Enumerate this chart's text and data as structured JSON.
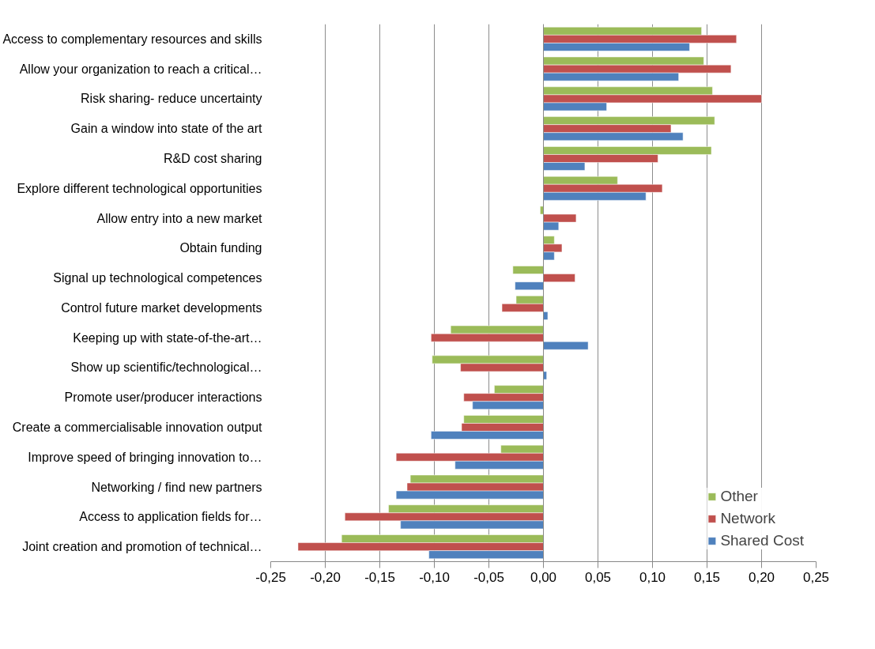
{
  "chart_data": {
    "type": "bar",
    "orientation": "horizontal",
    "categories": [
      "Access to complementary resources and skills",
      "Allow your organization to reach a critical…",
      "Risk sharing- reduce uncertainty",
      "Gain a window into state of the art",
      "R&D cost sharing",
      "Explore different technological opportunities",
      "Allow entry into a new market",
      "Obtain funding",
      "Signal up technological competences",
      "Control future market developments",
      "Keeping up with state-of-the-art…",
      "Show up scientific/technological…",
      "Promote user/producer interactions",
      "Create a commercialisable innovation output",
      "Improve speed of bringing innovation to…",
      "Networking / find new partners",
      "Access to application fields for…",
      "Joint creation and promotion of technical…"
    ],
    "series": [
      {
        "name": "Other",
        "color": "#9bbb59",
        "values": [
          0.145,
          0.147,
          0.155,
          0.157,
          0.154,
          0.068,
          -0.003,
          0.01,
          -0.028,
          -0.025,
          -0.085,
          -0.102,
          -0.045,
          -0.073,
          -0.039,
          -0.122,
          -0.142,
          -0.185
        ]
      },
      {
        "name": "Network",
        "color": "#c0504d",
        "values": [
          0.177,
          0.172,
          0.2,
          0.117,
          0.105,
          0.109,
          0.03,
          0.017,
          0.029,
          -0.038,
          -0.103,
          -0.076,
          -0.073,
          -0.075,
          -0.135,
          -0.125,
          -0.182,
          -0.225
        ]
      },
      {
        "name": "Shared Cost",
        "color": "#4f81bd",
        "values": [
          0.134,
          0.124,
          0.058,
          0.128,
          0.038,
          0.094,
          0.014,
          0.01,
          -0.026,
          0.004,
          0.041,
          0.003,
          -0.065,
          -0.103,
          -0.081,
          -0.135,
          -0.131,
          -0.105
        ]
      }
    ],
    "xlim": [
      -0.25,
      0.25
    ],
    "xticks": [
      {
        "value": -0.25,
        "label": "-0,25"
      },
      {
        "value": -0.2,
        "label": "-0,20"
      },
      {
        "value": -0.15,
        "label": "-0,15"
      },
      {
        "value": -0.1,
        "label": "-0,10"
      },
      {
        "value": -0.05,
        "label": "-0,05"
      },
      {
        "value": 0,
        "label": "0,00"
      },
      {
        "value": 0.05,
        "label": "0,05"
      },
      {
        "value": 0.1,
        "label": "0,10"
      },
      {
        "value": 0.15,
        "label": "0,15"
      },
      {
        "value": 0.2,
        "label": "0,20"
      },
      {
        "value": 0.25,
        "label": "0,25"
      }
    ],
    "grid": "x",
    "legend": "bottom right"
  }
}
